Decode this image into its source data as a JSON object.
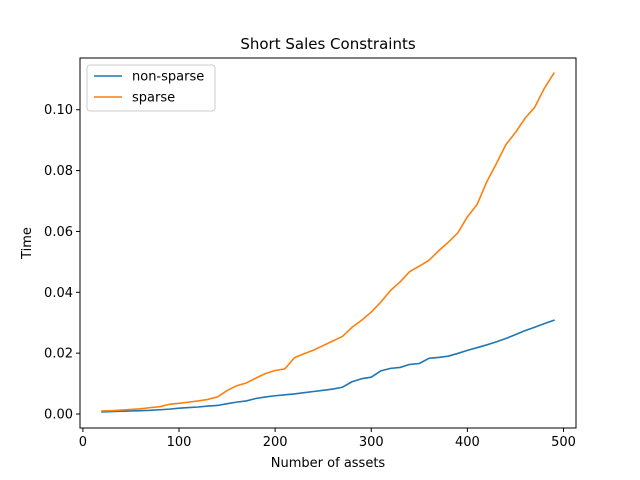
{
  "chart_data": {
    "type": "line",
    "title": "Short Sales Constraints",
    "xlabel": "Number of assets",
    "ylabel": "Time",
    "xlim": [
      -3,
      513
    ],
    "ylim": [
      -0.0046,
      0.117
    ],
    "xticks": [
      0,
      100,
      200,
      300,
      400,
      500
    ],
    "xtick_labels": [
      "0",
      "100",
      "200",
      "300",
      "400",
      "500"
    ],
    "yticks": [
      0.0,
      0.02,
      0.04,
      0.06,
      0.08,
      0.1
    ],
    "ytick_labels": [
      "0.00",
      "0.02",
      "0.04",
      "0.06",
      "0.08",
      "0.10"
    ],
    "grid": false,
    "legend_position": "top-left",
    "x": [
      20,
      30,
      40,
      50,
      60,
      70,
      80,
      90,
      100,
      110,
      120,
      130,
      140,
      150,
      160,
      170,
      180,
      190,
      200,
      210,
      220,
      230,
      240,
      250,
      260,
      270,
      280,
      290,
      300,
      310,
      320,
      330,
      340,
      350,
      360,
      370,
      380,
      390,
      400,
      410,
      420,
      430,
      440,
      450,
      460,
      470,
      480,
      490
    ],
    "series": [
      {
        "name": "non-sparse",
        "color": "#1f77b4",
        "values": [
          0.0007,
          0.0008,
          0.0009,
          0.001,
          0.0011,
          0.0012,
          0.0014,
          0.0016,
          0.0019,
          0.0021,
          0.0023,
          0.0026,
          0.0028,
          0.0034,
          0.0039,
          0.0043,
          0.0051,
          0.0056,
          0.006,
          0.0063,
          0.0066,
          0.007,
          0.0074,
          0.0078,
          0.0082,
          0.0088,
          0.0106,
          0.0116,
          0.0121,
          0.0142,
          0.015,
          0.0153,
          0.0163,
          0.0166,
          0.0183,
          0.0186,
          0.019,
          0.0199,
          0.0209,
          0.0218,
          0.0227,
          0.0237,
          0.0248,
          0.0261,
          0.0274,
          0.0285,
          0.0297,
          0.0308
        ]
      },
      {
        "name": "sparse",
        "color": "#ff7f0e",
        "values": [
          0.001,
          0.0011,
          0.0013,
          0.0015,
          0.0017,
          0.0021,
          0.0024,
          0.0032,
          0.0035,
          0.0039,
          0.0043,
          0.0048,
          0.0056,
          0.0077,
          0.0093,
          0.0102,
          0.0118,
          0.0133,
          0.0143,
          0.0148,
          0.0185,
          0.0198,
          0.021,
          0.0225,
          0.024,
          0.0255,
          0.0285,
          0.0308,
          0.0335,
          0.0368,
          0.0406,
          0.0434,
          0.0468,
          0.0486,
          0.0505,
          0.0536,
          0.0564,
          0.0595,
          0.0648,
          0.0688,
          0.0762,
          0.0822,
          0.0885,
          0.0925,
          0.0972,
          0.1008,
          0.107,
          0.112
        ]
      }
    ]
  }
}
